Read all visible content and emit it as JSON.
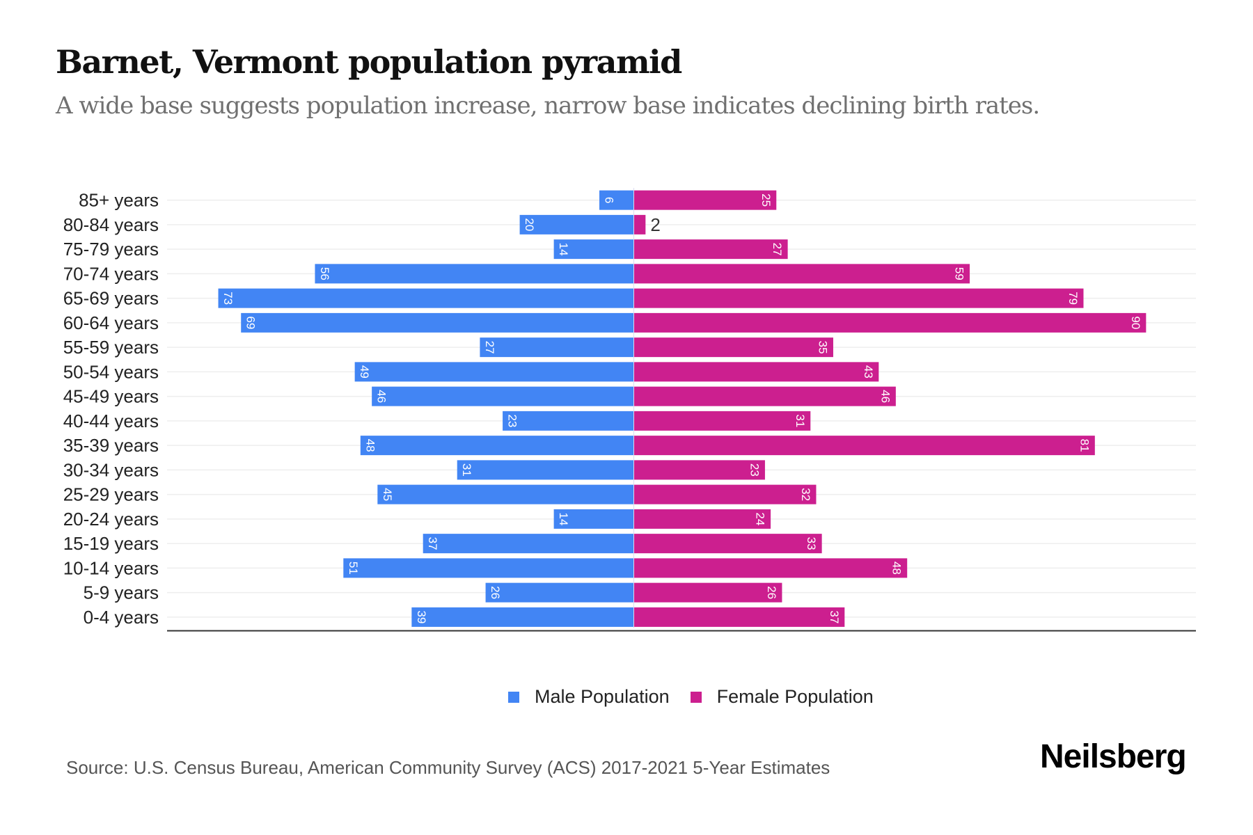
{
  "header": {
    "title": "Barnet, Vermont population pyramid",
    "subtitle": "A wide base suggests population increase, narrow base indicates declining birth rates."
  },
  "colors": {
    "male": "#4285f4",
    "female": "#cc1f8f",
    "gridline": "#eeeeee",
    "axis": "#333333"
  },
  "legend": {
    "male_label": "Male Population",
    "female_label": "Female Population"
  },
  "footer": {
    "source": "Source: U.S. Census Bureau, American Community Survey (ACS) 2017-2021 5-Year Estimates",
    "logo": "Neilsberg"
  },
  "chart_data": {
    "type": "bar",
    "orientation": "horizontal-diverging",
    "title": "Barnet, Vermont population pyramid",
    "subtitle": "A wide base suggests population increase, narrow base indicates declining birth rates.",
    "xlabel": "",
    "ylabel": "",
    "categories": [
      "85+ years",
      "80-84 years",
      "75-79 years",
      "70-74 years",
      "65-69 years",
      "60-64 years",
      "55-59 years",
      "50-54 years",
      "45-49 years",
      "40-44 years",
      "35-39 years",
      "30-34 years",
      "25-29 years",
      "20-24 years",
      "15-19 years",
      "10-14 years",
      "5-9 years",
      "0-4 years"
    ],
    "series": [
      {
        "name": "Male Population",
        "side": "left",
        "values": [
          6,
          20,
          14,
          56,
          73,
          69,
          27,
          49,
          46,
          23,
          48,
          31,
          45,
          14,
          37,
          51,
          26,
          39
        ]
      },
      {
        "name": "Female Population",
        "side": "right",
        "values": [
          25,
          2,
          27,
          59,
          79,
          90,
          35,
          43,
          46,
          31,
          81,
          23,
          32,
          24,
          33,
          48,
          26,
          37
        ]
      }
    ],
    "xlim": [
      -82,
      99
    ],
    "grid": true,
    "legend_position": "bottom-center",
    "data_labels": true
  }
}
